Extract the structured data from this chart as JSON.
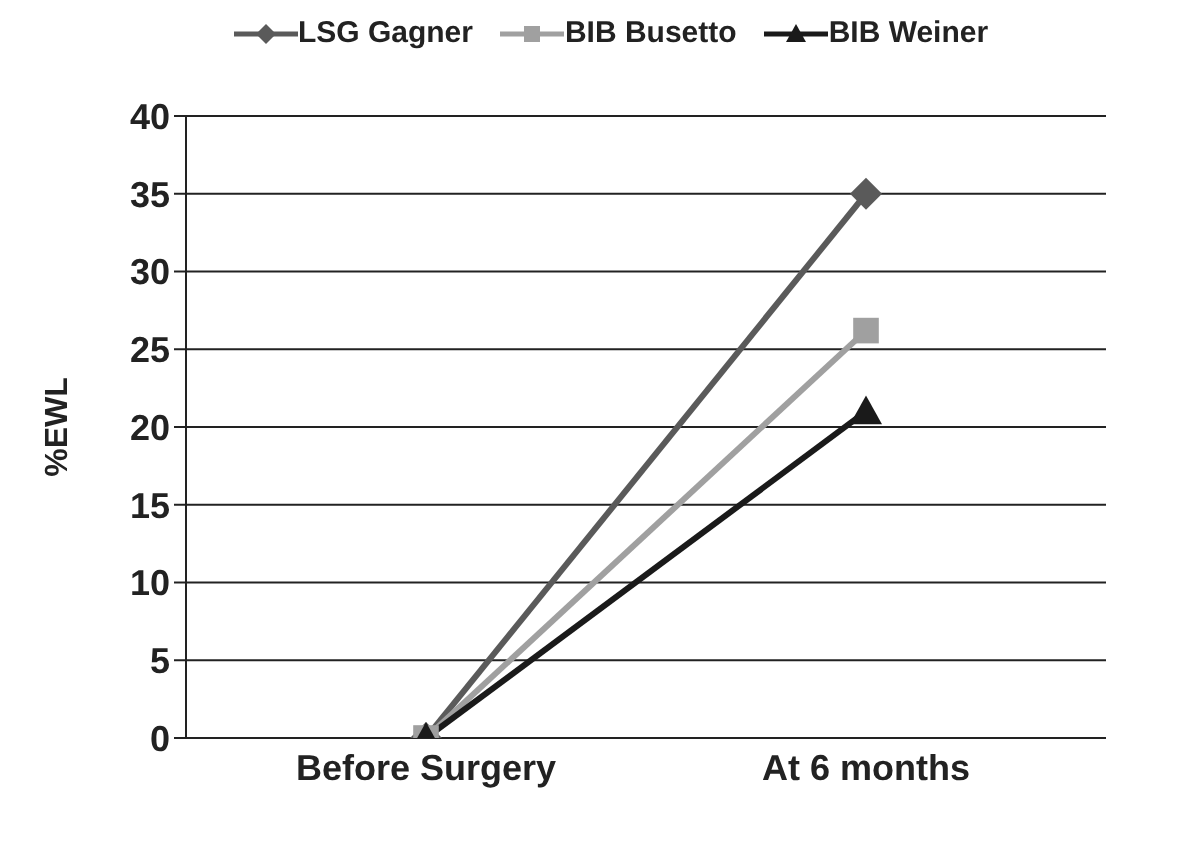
{
  "chart_data": {
    "type": "line",
    "ylabel": "%EWL",
    "categories": [
      "Before Surgery",
      "At 6 months"
    ],
    "series": [
      {
        "name": "LSG Gagner",
        "color": "#5a5a5a",
        "marker": "diamond",
        "values": [
          0,
          35
        ]
      },
      {
        "name": "BIB Busetto",
        "color": "#a0a0a0",
        "marker": "square",
        "values": [
          0,
          26.2
        ]
      },
      {
        "name": "BIB Weiner",
        "color": "#1a1a1a",
        "marker": "triangle",
        "values": [
          0,
          21
        ]
      }
    ],
    "ylim": [
      0,
      40
    ],
    "yticks": [
      0,
      5,
      10,
      15,
      20,
      25,
      30,
      35,
      40
    ],
    "grid": "y",
    "legend": "top"
  }
}
